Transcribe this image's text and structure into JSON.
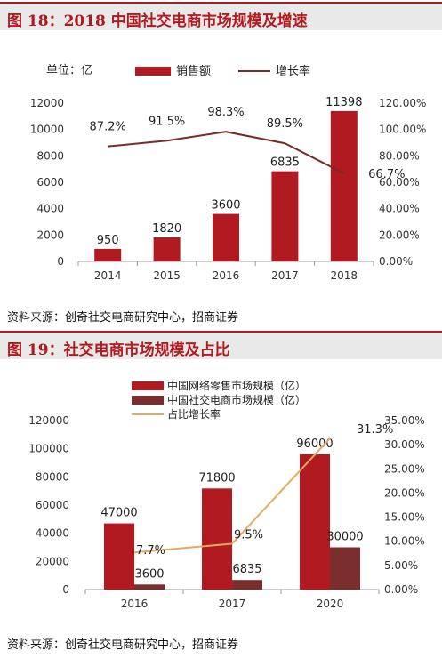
{
  "figure1": {
    "title": "图 18：2018 中国社交电商市场规模及增速",
    "source": "资料来源：创奇社交电商研究中心，招商证券",
    "unit_label": "单位：亿",
    "legend": [
      "销售额",
      "增长率"
    ],
    "colors": {
      "bar": "#b01a20",
      "line": "#7a2a2a"
    }
  },
  "figure2": {
    "title": "图 19：社交电商市场规模及占比",
    "source": "资料来源：创奇社交电商研究中心，招商证券",
    "legend": [
      "中国网络零售市场规模（亿）",
      "中国社交电商市场规模（亿）",
      "占比增长率"
    ],
    "colors": {
      "bar1": "#b01a20",
      "bar2": "#7a2e2e",
      "line": "#e8a860"
    }
  },
  "chart_data": [
    {
      "type": "bar",
      "categories": [
        "2014",
        "2015",
        "2016",
        "2017",
        "2018"
      ],
      "series": [
        {
          "name": "销售额",
          "type": "bar",
          "axis": "left",
          "values": [
            950,
            1820,
            3600,
            6835,
            11398
          ],
          "labels": [
            "950",
            "1820",
            "3600",
            "6835",
            "11398"
          ]
        },
        {
          "name": "增长率",
          "type": "line",
          "axis": "right",
          "values": [
            87.2,
            91.5,
            98.3,
            89.5,
            66.7
          ],
          "labels": [
            "87.2%",
            "91.5%",
            "98.3%",
            "89.5%",
            "66.7%"
          ]
        }
      ],
      "ylim": [
        0,
        12000
      ],
      "y_ticks": [
        "0",
        "2000",
        "4000",
        "6000",
        "8000",
        "10000",
        "12000"
      ],
      "y2lim": [
        0,
        120
      ],
      "y2_ticks": [
        "0.00%",
        "20.00%",
        "40.00%",
        "60.00%",
        "80.00%",
        "100.00%",
        "120.00%"
      ],
      "legend_position": "top"
    },
    {
      "type": "bar",
      "categories": [
        "2016",
        "2017",
        "2020"
      ],
      "series": [
        {
          "name": "中国网络零售市场规模（亿）",
          "type": "bar",
          "axis": "left",
          "values": [
            47000,
            71800,
            96000
          ],
          "labels": [
            "47000",
            "71800",
            "96000"
          ]
        },
        {
          "name": "中国社交电商市场规模（亿）",
          "type": "bar",
          "axis": "left",
          "values": [
            3600,
            6835,
            30000
          ],
          "labels": [
            "3600",
            "6835",
            "30000"
          ]
        },
        {
          "name": "占比增长率",
          "type": "line",
          "axis": "right",
          "values": [
            7.7,
            9.5,
            31.3
          ],
          "labels": [
            "7.7%",
            "9.5%",
            "31.3%"
          ]
        }
      ],
      "ylim": [
        0,
        120000
      ],
      "y_ticks": [
        "0",
        "20000",
        "40000",
        "60000",
        "80000",
        "100000",
        "120000"
      ],
      "y2lim": [
        0,
        35
      ],
      "y2_ticks": [
        "0.00%",
        "5.00%",
        "10.00%",
        "15.00%",
        "20.00%",
        "25.00%",
        "30.00%",
        "35.00%"
      ],
      "legend_position": "top"
    }
  ]
}
